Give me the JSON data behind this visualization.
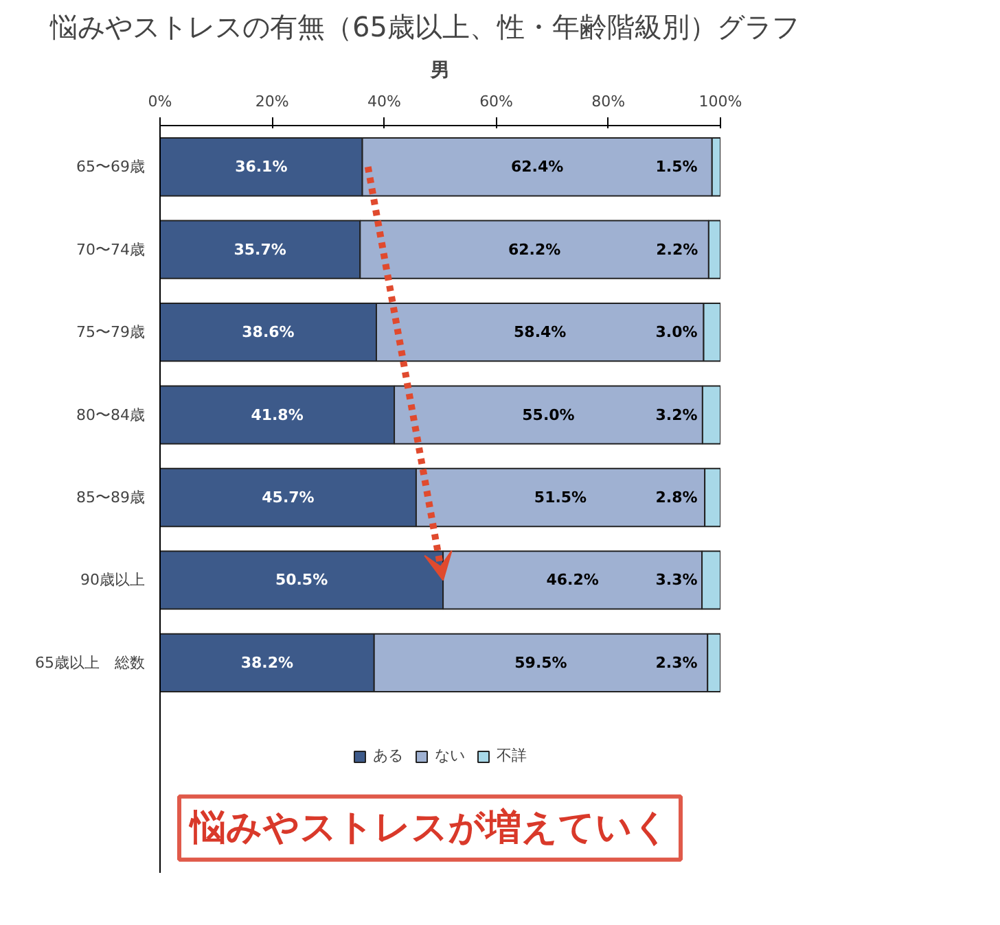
{
  "chart_data": {
    "type": "bar",
    "orientation": "horizontal",
    "stacked": true,
    "title": "悩みやストレスの有無（65歳以上、性・年齢階級別）グラフ",
    "subtitle": "男",
    "categories": [
      "65〜69歳",
      "70〜74歳",
      "75〜79歳",
      "80〜84歳",
      "85〜89歳",
      "90歳以上",
      "65歳以上　総数"
    ],
    "series": [
      {
        "name": "ある",
        "color": "#3d5a8a",
        "values": [
          36.1,
          35.7,
          38.6,
          41.8,
          45.7,
          50.5,
          38.2
        ],
        "value_labels": [
          "36.1%",
          "35.7%",
          "38.6%",
          "41.8%",
          "45.7%",
          "50.5%",
          "38.2%"
        ]
      },
      {
        "name": "ない",
        "color": "#9fb1d2",
        "values": [
          62.4,
          62.2,
          58.4,
          55.0,
          51.5,
          46.2,
          59.5
        ],
        "value_labels": [
          "62.4%",
          "62.2%",
          "58.4%",
          "55.0%",
          "51.5%",
          "46.2%",
          "59.5%"
        ]
      },
      {
        "name": "不詳",
        "color": "#a8d8e8",
        "values": [
          1.5,
          2.2,
          3.0,
          3.2,
          2.8,
          3.3,
          2.3
        ],
        "value_labels": [
          "1.5%",
          "2.2%",
          "3.0%",
          "3.2%",
          "2.8%",
          "3.3%",
          "2.3%"
        ]
      }
    ],
    "xlim": [
      0,
      100
    ],
    "xticks": [
      {
        "value": 0,
        "label": "0%"
      },
      {
        "value": 20,
        "label": "20%"
      },
      {
        "value": 40,
        "label": "40%"
      },
      {
        "value": 60,
        "label": "60%"
      },
      {
        "value": 80,
        "label": "80%"
      },
      {
        "value": 100,
        "label": "100%"
      }
    ],
    "grid": false,
    "legend": "bottom",
    "annotations": [
      "悩みやストレスが増えていく"
    ]
  }
}
